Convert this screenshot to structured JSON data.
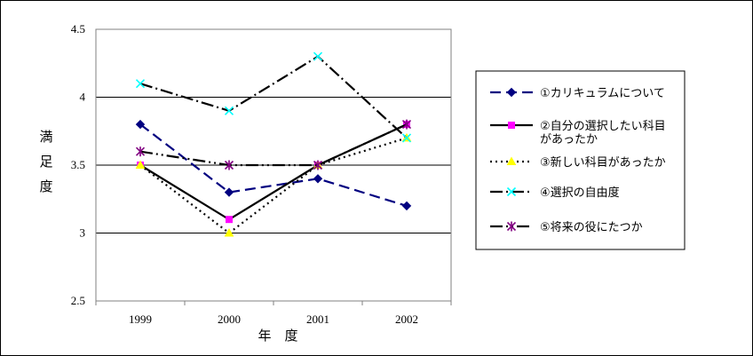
{
  "chart_data": {
    "type": "line",
    "title": "",
    "xlabel": "年　度",
    "ylabel": "満足度",
    "ylabel_chars": [
      "満",
      "足",
      "度"
    ],
    "categories": [
      "1999",
      "2000",
      "2001",
      "2002"
    ],
    "ylim": [
      2.5,
      4.5
    ],
    "yticks": [
      "2.5",
      "3",
      "3.5",
      "4",
      "4.5"
    ],
    "ytick_values": [
      2.5,
      3,
      3.5,
      4,
      4.5
    ],
    "grid": true,
    "legend_position": "right",
    "series": [
      {
        "name": "①カリキュラムについて",
        "name_lines": [
          "①カリキュラムについて"
        ],
        "values": [
          3.8,
          3.3,
          3.4,
          3.2
        ],
        "color": "#000080",
        "marker_color": "#000080",
        "marker": "diamond",
        "dash": "12,6"
      },
      {
        "name": "②自分の選択したい科目があったか",
        "name_lines": [
          "②自分の選択したい科目",
          "があったか"
        ],
        "values": [
          3.5,
          3.1,
          3.5,
          3.8
        ],
        "color": "#000000",
        "marker_color": "#ff00ff",
        "marker": "square",
        "dash": ""
      },
      {
        "name": "③新しい科目があったか",
        "name_lines": [
          "③新しい科目があったか"
        ],
        "values": [
          3.5,
          3.0,
          3.5,
          3.7
        ],
        "color": "#000000",
        "marker_color": "#ffff00",
        "marker": "triangle",
        "dash": "2,4"
      },
      {
        "name": "④選択の自由度",
        "name_lines": [
          "④選択の自由度"
        ],
        "values": [
          4.1,
          3.9,
          4.3,
          3.7
        ],
        "color": "#000000",
        "marker_color": "#00ffff",
        "marker": "x",
        "dash": "14,4,2,4"
      },
      {
        "name": "⑤将来の役にたつか",
        "name_lines": [
          "⑤将来の役にたつか"
        ],
        "values": [
          3.6,
          3.5,
          3.5,
          3.8
        ],
        "color": "#000000",
        "marker_color": "#800080",
        "marker": "asterisk",
        "dash": "14,4,2,4,2,4"
      }
    ]
  }
}
